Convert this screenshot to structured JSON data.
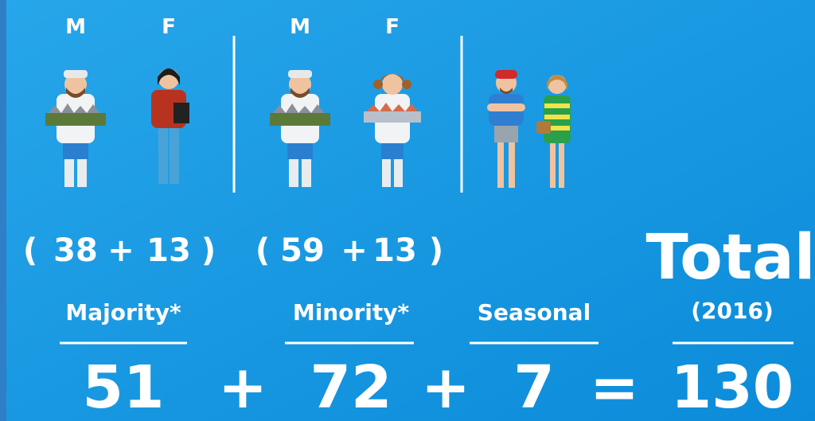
{
  "groups": [
    {
      "columns": [
        "M",
        "F"
      ],
      "breakdown": [
        38,
        13
      ],
      "label": "Majority*",
      "count": 51
    },
    {
      "columns": [
        "M",
        "F"
      ],
      "breakdown": [
        59,
        13
      ],
      "label": "Minority*",
      "count": 72
    },
    {
      "label": "Seasonal",
      "count": 7
    }
  ],
  "total": {
    "title": "Total",
    "year": "(2016)",
    "value": 130
  },
  "symbols": {
    "open": "(",
    "close": ")",
    "plus": "+",
    "equals": "="
  }
}
